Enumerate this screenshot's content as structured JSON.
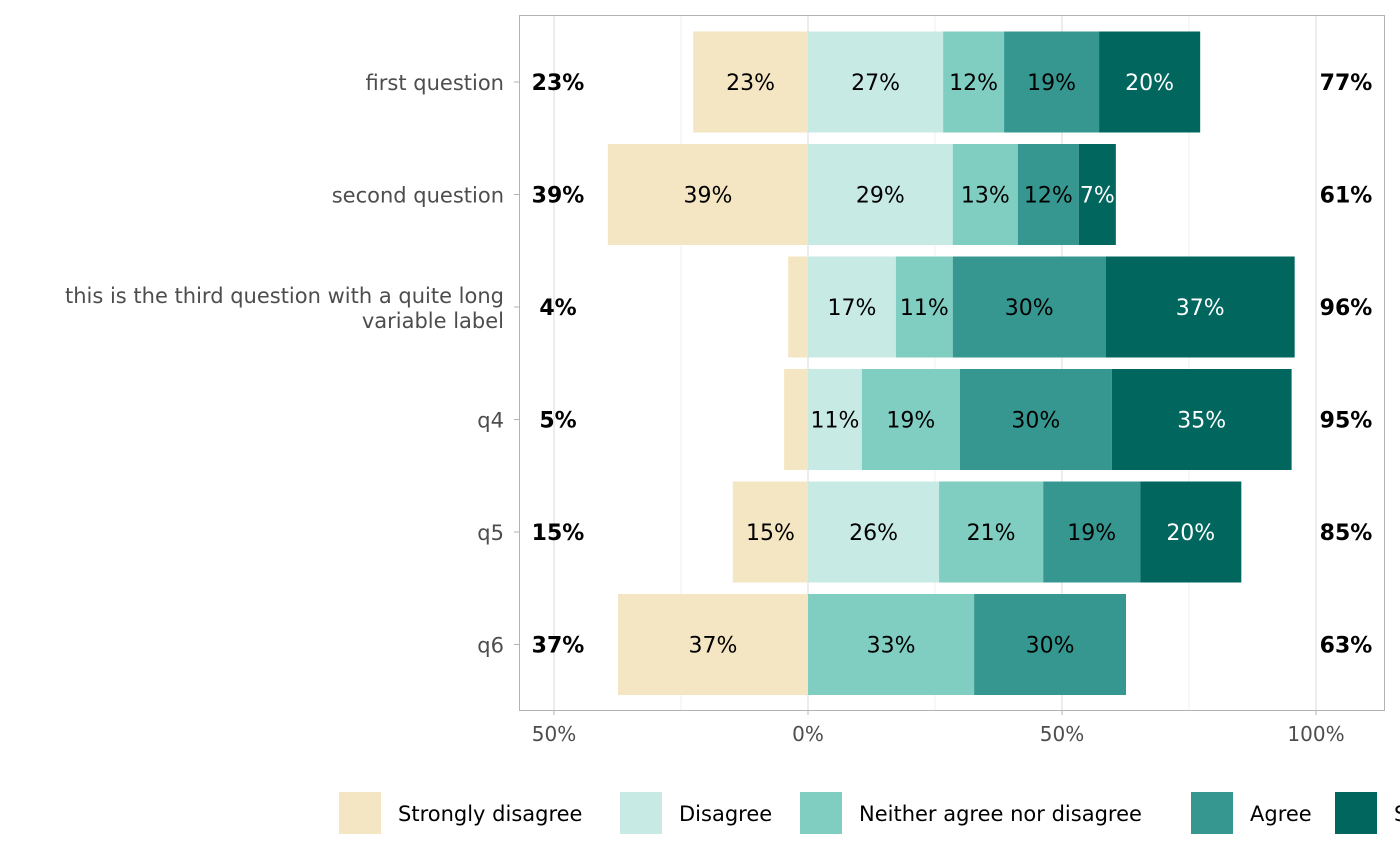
{
  "chart_data": {
    "type": "bar",
    "orientation": "horizontal",
    "stacked": "diverging",
    "categories": [
      "first question",
      "second question",
      "this is the third question with a quite long\nvariable label",
      "q4",
      "q5",
      "q6"
    ],
    "series": [
      {
        "name": "Strongly disagree",
        "color": "#F5E6C3",
        "side": "negative",
        "values": [
          22.6,
          39.4,
          3.9,
          4.7,
          14.8,
          37.4
        ],
        "labels": [
          "23%",
          "39%",
          "",
          "",
          "15%",
          "37%"
        ]
      },
      {
        "name": "Disagree",
        "color": "#C7EAE5",
        "side": "positive",
        "values": [
          26.6,
          28.5,
          17.3,
          10.6,
          25.8,
          0
        ],
        "labels": [
          "27%",
          "29%",
          "17%",
          "11%",
          "26%",
          ""
        ]
      },
      {
        "name": "Neither agree nor disagree",
        "color": "#80CDC1",
        "side": "positive",
        "values": [
          12.0,
          12.8,
          11.2,
          19.3,
          20.5,
          32.7
        ],
        "labels": [
          "12%",
          "13%",
          "11%",
          "19%",
          "21%",
          "33%"
        ]
      },
      {
        "name": "Agree",
        "color": "#35978F",
        "side": "positive",
        "values": [
          18.7,
          12.0,
          30.1,
          29.9,
          19.1,
          29.9
        ],
        "labels": [
          "19%",
          "12%",
          "30%",
          "30%",
          "19%",
          "30%"
        ]
      },
      {
        "name": "Strongly agree",
        "color": "#01665E",
        "side": "positive",
        "values": [
          19.9,
          7.3,
          37.2,
          35.4,
          19.9,
          0
        ],
        "labels": [
          "20%",
          "7%",
          "37%",
          "35%",
          "20%",
          ""
        ]
      }
    ],
    "left_totals": [
      "23%",
      "39%",
      "4%",
      "5%",
      "15%",
      "37%"
    ],
    "right_totals": [
      "77%",
      "61%",
      "96%",
      "95%",
      "85%",
      "63%"
    ],
    "xlim": [
      -55,
      113
    ],
    "xticks": [
      -50,
      0,
      50,
      100
    ],
    "xtick_labels": [
      "50%",
      "0%",
      "50%",
      "100%"
    ],
    "grid": true,
    "legend_position": "bottom"
  }
}
